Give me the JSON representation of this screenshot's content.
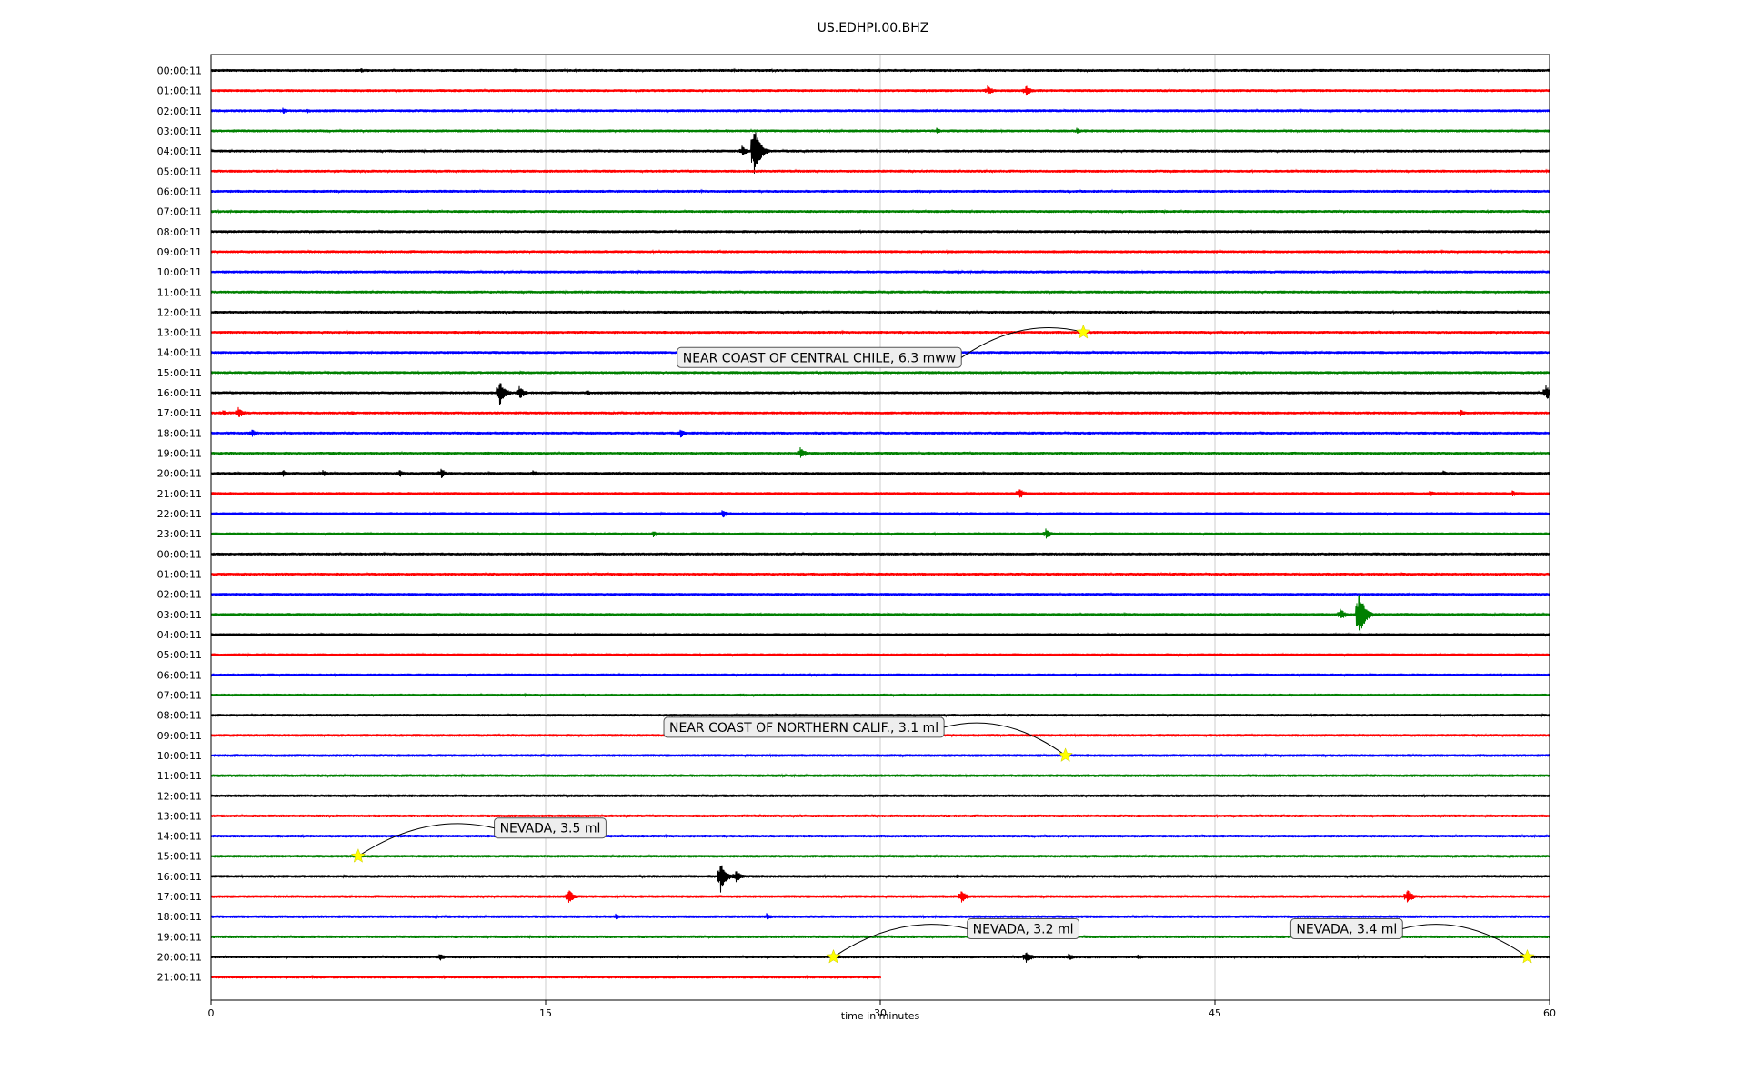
{
  "chart_data": {
    "type": "line",
    "title": "US.EDHPI.00.BHZ",
    "xlabel": "time in minutes",
    "xlim": [
      0,
      60
    ],
    "x_ticks": [
      "0",
      "15",
      "30",
      "45",
      "60"
    ],
    "grid": "vertical",
    "trace_colors": [
      "#000000",
      "#ff0000",
      "#0000ff",
      "#008000"
    ],
    "marker_color": "#ffff00",
    "rows": [
      "00:00:11",
      "01:00:11",
      "02:00:11",
      "03:00:11",
      "04:00:11",
      "05:00:11",
      "06:00:11",
      "07:00:11",
      "08:00:11",
      "09:00:11",
      "10:00:11",
      "11:00:11",
      "12:00:11",
      "13:00:11",
      "14:00:11",
      "15:00:11",
      "16:00:11",
      "17:00:11",
      "18:00:11",
      "19:00:11",
      "20:00:11",
      "21:00:11",
      "22:00:11",
      "23:00:11",
      "00:00:11",
      "01:00:11",
      "02:00:11",
      "03:00:11",
      "04:00:11",
      "05:00:11",
      "06:00:11",
      "07:00:11",
      "08:00:11",
      "09:00:11",
      "10:00:11",
      "11:00:11",
      "12:00:11",
      "13:00:11",
      "14:00:11",
      "15:00:11",
      "16:00:11",
      "17:00:11",
      "18:00:11",
      "19:00:11",
      "20:00:11",
      "21:00:11"
    ],
    "last_row_end_minute": 30,
    "signals": [
      {
        "row": 0,
        "minute": 6.7,
        "amp": 3
      },
      {
        "row": 0,
        "minute": 13.6,
        "amp": 3
      },
      {
        "row": 1,
        "minute": 34.8,
        "amp": 6
      },
      {
        "row": 1,
        "minute": 36.5,
        "amp": 7
      },
      {
        "row": 2,
        "minute": 3.2,
        "amp": 4
      },
      {
        "row": 2,
        "minute": 4.3,
        "amp": 3
      },
      {
        "row": 3,
        "minute": 32.5,
        "amp": 4
      },
      {
        "row": 3,
        "minute": 38.8,
        "amp": 4
      },
      {
        "row": 4,
        "minute": 23.8,
        "amp": 6
      },
      {
        "row": 4,
        "minute": 24.3,
        "amp": 34
      },
      {
        "row": 16,
        "minute": 12.9,
        "amp": 16
      },
      {
        "row": 16,
        "minute": 13.8,
        "amp": 8
      },
      {
        "row": 16,
        "minute": 16.8,
        "amp": 4
      },
      {
        "row": 16,
        "minute": 59.8,
        "amp": 10
      },
      {
        "row": 17,
        "minute": 0.5,
        "amp": 4
      },
      {
        "row": 17,
        "minute": 1.2,
        "amp": 7
      },
      {
        "row": 17,
        "minute": 6.3,
        "amp": 3
      },
      {
        "row": 17,
        "minute": 56.0,
        "amp": 4
      },
      {
        "row": 18,
        "minute": 1.8,
        "amp": 5
      },
      {
        "row": 18,
        "minute": 21.0,
        "amp": 6
      },
      {
        "row": 19,
        "minute": 26.4,
        "amp": 7
      },
      {
        "row": 20,
        "minute": 3.2,
        "amp": 5
      },
      {
        "row": 20,
        "minute": 5.0,
        "amp": 4
      },
      {
        "row": 20,
        "minute": 8.4,
        "amp": 5
      },
      {
        "row": 20,
        "minute": 10.3,
        "amp": 6
      },
      {
        "row": 20,
        "minute": 14.4,
        "amp": 4
      },
      {
        "row": 20,
        "minute": 55.2,
        "amp": 4
      },
      {
        "row": 21,
        "minute": 36.2,
        "amp": 7
      },
      {
        "row": 21,
        "minute": 54.6,
        "amp": 4
      },
      {
        "row": 21,
        "minute": 58.3,
        "amp": 4
      },
      {
        "row": 22,
        "minute": 22.9,
        "amp": 5
      },
      {
        "row": 23,
        "minute": 19.8,
        "amp": 4
      },
      {
        "row": 23,
        "minute": 37.4,
        "amp": 7
      },
      {
        "row": 27,
        "minute": 50.6,
        "amp": 7
      },
      {
        "row": 27,
        "minute": 51.4,
        "amp": 34
      },
      {
        "row": 40,
        "minute": 22.8,
        "amp": 20
      },
      {
        "row": 40,
        "minute": 23.5,
        "amp": 8
      },
      {
        "row": 40,
        "minute": 33.4,
        "amp": 3
      },
      {
        "row": 41,
        "minute": 16.0,
        "amp": 9
      },
      {
        "row": 41,
        "minute": 33.6,
        "amp": 8
      },
      {
        "row": 41,
        "minute": 53.6,
        "amp": 9
      },
      {
        "row": 42,
        "minute": 18.1,
        "amp": 4
      },
      {
        "row": 42,
        "minute": 24.9,
        "amp": 4
      },
      {
        "row": 44,
        "minute": 10.2,
        "amp": 5
      },
      {
        "row": 44,
        "minute": 36.5,
        "amp": 8
      },
      {
        "row": 44,
        "minute": 38.4,
        "amp": 5
      },
      {
        "row": 44,
        "minute": 41.5,
        "amp": 4
      }
    ],
    "events": [
      {
        "label": "NEAR COAST OF CENTRAL CHILE, 6.3 mww",
        "row": 13,
        "minute": 39.1,
        "label_row": 14.25,
        "label_minute": 20.9
      },
      {
        "label": "NEAR COAST OF NORTHERN CALIF., 3.1 ml",
        "row": 34,
        "minute": 38.3,
        "label_row": 32.6,
        "label_minute": 20.3
      },
      {
        "label": "NEVADA, 3.5 ml",
        "row": 39,
        "minute": 6.6,
        "label_row": 37.6,
        "label_minute": 12.7
      },
      {
        "label": "NEVADA, 3.2 ml",
        "row": 44,
        "minute": 27.9,
        "label_row": 42.6,
        "label_minute": 33.9
      },
      {
        "label": "NEVADA, 3.4 ml",
        "row": 44,
        "minute": 59.0,
        "label_row": 42.6,
        "label_minute": 48.4
      }
    ]
  }
}
